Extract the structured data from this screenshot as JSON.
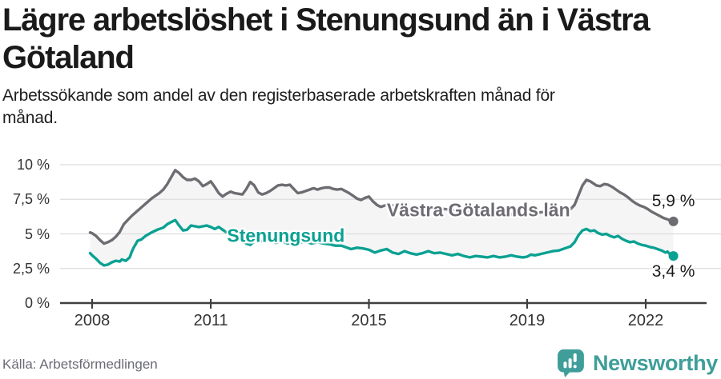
{
  "header": {
    "title": "Lägre arbetslöshet i Stenungsund än i Västra Götaland",
    "subtitle": "Arbetssökande som andel av den registerbaserade arbetskraften månad för månad."
  },
  "footer": {
    "source": "Källa: Arbetsförmedlingen",
    "brand": "Newsworthy"
  },
  "colors": {
    "grid": "#dcdcdc",
    "axis": "#3f3f3f",
    "fill_between": "#f5f5f5",
    "tick_text": "#333333",
    "brand_teal": "#3f9e99",
    "series_gray": "#6e6c72",
    "series_teal": "#0aa192"
  },
  "chart_data": {
    "type": "line",
    "title": "Lägre arbetslöshet i Stenungsund än i Västra Götaland",
    "xlabel": "",
    "ylabel": "",
    "ylim": [
      0,
      10
    ],
    "xlim": [
      2007.95,
      2022.7
    ],
    "grid": "horizontal",
    "legend_position": "inline-labels",
    "y_ticks": [
      {
        "v": 0,
        "label": "0 %"
      },
      {
        "v": 2.5,
        "label": "2,5 %"
      },
      {
        "v": 5,
        "label": "5 %"
      },
      {
        "v": 7.5,
        "label": "7,5 %"
      },
      {
        "v": 10,
        "label": "10 %"
      }
    ],
    "x_ticks": [
      {
        "v": 2008,
        "label": "2008"
      },
      {
        "v": 2011,
        "label": "2011"
      },
      {
        "v": 2015,
        "label": "2015"
      },
      {
        "v": 2019,
        "label": "2019"
      },
      {
        "v": 2022,
        "label": "2022"
      }
    ],
    "series": [
      {
        "name": "Västra Götalands län",
        "color": "#6e6c72",
        "end_label": "5,9 %",
        "end_value": 5.9,
        "value_label_side": "above",
        "label_anchor": {
          "x": 2017.77,
          "y": 6.72
        },
        "points": [
          [
            2007.95,
            5.1
          ],
          [
            2008.0,
            5.05
          ],
          [
            2008.1,
            4.85
          ],
          [
            2008.2,
            4.55
          ],
          [
            2008.3,
            4.3
          ],
          [
            2008.4,
            4.4
          ],
          [
            2008.5,
            4.55
          ],
          [
            2008.6,
            4.8
          ],
          [
            2008.7,
            5.15
          ],
          [
            2008.8,
            5.7
          ],
          [
            2008.9,
            6.0
          ],
          [
            2009.0,
            6.3
          ],
          [
            2009.1,
            6.55
          ],
          [
            2009.2,
            6.8
          ],
          [
            2009.3,
            7.05
          ],
          [
            2009.4,
            7.3
          ],
          [
            2009.5,
            7.55
          ],
          [
            2009.6,
            7.75
          ],
          [
            2009.7,
            7.95
          ],
          [
            2009.8,
            8.2
          ],
          [
            2009.9,
            8.6
          ],
          [
            2010.0,
            9.1
          ],
          [
            2010.1,
            9.6
          ],
          [
            2010.2,
            9.4
          ],
          [
            2010.3,
            9.1
          ],
          [
            2010.4,
            8.9
          ],
          [
            2010.5,
            8.9
          ],
          [
            2010.6,
            9.0
          ],
          [
            2010.7,
            8.8
          ],
          [
            2010.8,
            8.45
          ],
          [
            2010.9,
            8.6
          ],
          [
            2011.0,
            8.8
          ],
          [
            2011.1,
            8.4
          ],
          [
            2011.2,
            7.95
          ],
          [
            2011.3,
            7.7
          ],
          [
            2011.4,
            7.9
          ],
          [
            2011.5,
            8.05
          ],
          [
            2011.6,
            7.95
          ],
          [
            2011.7,
            7.9
          ],
          [
            2011.8,
            7.85
          ],
          [
            2011.9,
            8.25
          ],
          [
            2012.0,
            8.75
          ],
          [
            2012.1,
            8.5
          ],
          [
            2012.2,
            8.0
          ],
          [
            2012.3,
            7.85
          ],
          [
            2012.4,
            7.95
          ],
          [
            2012.5,
            8.1
          ],
          [
            2012.6,
            8.3
          ],
          [
            2012.7,
            8.5
          ],
          [
            2012.8,
            8.55
          ],
          [
            2012.9,
            8.5
          ],
          [
            2013.0,
            8.55
          ],
          [
            2013.1,
            8.25
          ],
          [
            2013.2,
            7.95
          ],
          [
            2013.3,
            8.0
          ],
          [
            2013.4,
            8.1
          ],
          [
            2013.5,
            8.2
          ],
          [
            2013.6,
            8.3
          ],
          [
            2013.7,
            8.2
          ],
          [
            2013.8,
            8.3
          ],
          [
            2013.9,
            8.35
          ],
          [
            2014.0,
            8.35
          ],
          [
            2014.1,
            8.25
          ],
          [
            2014.2,
            8.2
          ],
          [
            2014.3,
            8.25
          ],
          [
            2014.4,
            8.1
          ],
          [
            2014.5,
            7.95
          ],
          [
            2014.6,
            7.75
          ],
          [
            2014.7,
            7.55
          ],
          [
            2014.8,
            7.45
          ],
          [
            2014.9,
            7.6
          ],
          [
            2015.0,
            7.7
          ],
          [
            2015.1,
            7.35
          ],
          [
            2015.2,
            7.1
          ],
          [
            2015.3,
            6.95
          ],
          [
            2015.4,
            7.05
          ],
          [
            2015.5,
            7.1
          ],
          [
            2015.7,
            7.0
          ],
          [
            2015.9,
            6.95
          ],
          [
            2016.1,
            6.9
          ],
          [
            2016.3,
            6.85
          ],
          [
            2016.5,
            6.8
          ],
          [
            2016.7,
            6.85
          ],
          [
            2016.9,
            6.8
          ],
          [
            2017.1,
            6.75
          ],
          [
            2017.3,
            6.7
          ],
          [
            2017.5,
            6.65
          ],
          [
            2017.7,
            6.6
          ],
          [
            2017.9,
            6.55
          ],
          [
            2018.1,
            6.5
          ],
          [
            2018.3,
            6.45
          ],
          [
            2018.5,
            6.4
          ],
          [
            2018.7,
            6.45
          ],
          [
            2018.9,
            6.5
          ],
          [
            2019.1,
            6.5
          ],
          [
            2019.3,
            6.55
          ],
          [
            2019.5,
            6.6
          ],
          [
            2019.7,
            6.65
          ],
          [
            2019.9,
            6.7
          ],
          [
            2020.0,
            6.75
          ],
          [
            2020.1,
            6.8
          ],
          [
            2020.2,
            7.1
          ],
          [
            2020.3,
            7.8
          ],
          [
            2020.4,
            8.5
          ],
          [
            2020.5,
            8.9
          ],
          [
            2020.6,
            8.8
          ],
          [
            2020.7,
            8.6
          ],
          [
            2020.75,
            8.5
          ],
          [
            2020.85,
            8.45
          ],
          [
            2020.95,
            8.6
          ],
          [
            2021.05,
            8.55
          ],
          [
            2021.15,
            8.4
          ],
          [
            2021.25,
            8.2
          ],
          [
            2021.35,
            8.0
          ],
          [
            2021.45,
            7.85
          ],
          [
            2021.55,
            7.65
          ],
          [
            2021.65,
            7.4
          ],
          [
            2021.75,
            7.2
          ],
          [
            2021.85,
            7.05
          ],
          [
            2021.95,
            6.95
          ],
          [
            2022.05,
            6.8
          ],
          [
            2022.15,
            6.6
          ],
          [
            2022.25,
            6.45
          ],
          [
            2022.35,
            6.3
          ],
          [
            2022.45,
            6.15
          ],
          [
            2022.55,
            6.05
          ],
          [
            2022.62,
            5.95
          ],
          [
            2022.7,
            5.9
          ]
        ]
      },
      {
        "name": "Stenungsund",
        "color": "#0aa192",
        "end_label": "3,4 %",
        "end_value": 3.4,
        "value_label_side": "below",
        "label_anchor": {
          "x": 2012.9,
          "y": 4.83
        },
        "points": [
          [
            2007.95,
            3.6
          ],
          [
            2008.0,
            3.45
          ],
          [
            2008.1,
            3.2
          ],
          [
            2008.2,
            2.9
          ],
          [
            2008.3,
            2.72
          ],
          [
            2008.4,
            2.78
          ],
          [
            2008.5,
            2.95
          ],
          [
            2008.6,
            3.05
          ],
          [
            2008.7,
            3.0
          ],
          [
            2008.75,
            3.15
          ],
          [
            2008.85,
            3.05
          ],
          [
            2008.95,
            3.3
          ],
          [
            2009.0,
            3.7
          ],
          [
            2009.05,
            4.0
          ],
          [
            2009.15,
            4.5
          ],
          [
            2009.25,
            4.6
          ],
          [
            2009.35,
            4.85
          ],
          [
            2009.5,
            5.1
          ],
          [
            2009.65,
            5.3
          ],
          [
            2009.8,
            5.45
          ],
          [
            2009.9,
            5.7
          ],
          [
            2010.0,
            5.85
          ],
          [
            2010.1,
            6.0
          ],
          [
            2010.2,
            5.6
          ],
          [
            2010.3,
            5.25
          ],
          [
            2010.4,
            5.3
          ],
          [
            2010.5,
            5.6
          ],
          [
            2010.6,
            5.55
          ],
          [
            2010.7,
            5.5
          ],
          [
            2010.8,
            5.55
          ],
          [
            2010.9,
            5.6
          ],
          [
            2011.0,
            5.5
          ],
          [
            2011.1,
            5.35
          ],
          [
            2011.2,
            5.5
          ],
          [
            2011.3,
            5.3
          ],
          [
            2011.4,
            5.1
          ],
          [
            2011.5,
            4.95
          ],
          [
            2011.6,
            4.8
          ],
          [
            2011.7,
            4.55
          ],
          [
            2011.8,
            4.5
          ],
          [
            2011.9,
            4.3
          ],
          [
            2012.0,
            4.2
          ],
          [
            2012.1,
            4.45
          ],
          [
            2012.2,
            4.55
          ],
          [
            2012.35,
            4.4
          ],
          [
            2012.5,
            4.5
          ],
          [
            2012.65,
            4.35
          ],
          [
            2012.8,
            4.45
          ],
          [
            2012.95,
            4.3
          ],
          [
            2013.1,
            4.45
          ],
          [
            2013.25,
            4.35
          ],
          [
            2013.4,
            4.45
          ],
          [
            2013.55,
            4.3
          ],
          [
            2013.7,
            4.4
          ],
          [
            2013.85,
            4.3
          ],
          [
            2014.0,
            4.25
          ],
          [
            2014.15,
            4.15
          ],
          [
            2014.3,
            4.15
          ],
          [
            2014.45,
            4.0
          ],
          [
            2014.55,
            3.9
          ],
          [
            2014.7,
            4.0
          ],
          [
            2014.85,
            3.95
          ],
          [
            2015.0,
            3.85
          ],
          [
            2015.15,
            3.65
          ],
          [
            2015.3,
            3.8
          ],
          [
            2015.45,
            3.9
          ],
          [
            2015.6,
            3.65
          ],
          [
            2015.75,
            3.55
          ],
          [
            2015.9,
            3.75
          ],
          [
            2016.05,
            3.6
          ],
          [
            2016.2,
            3.5
          ],
          [
            2016.35,
            3.6
          ],
          [
            2016.5,
            3.75
          ],
          [
            2016.65,
            3.6
          ],
          [
            2016.8,
            3.65
          ],
          [
            2016.95,
            3.55
          ],
          [
            2017.1,
            3.45
          ],
          [
            2017.25,
            3.55
          ],
          [
            2017.4,
            3.4
          ],
          [
            2017.55,
            3.3
          ],
          [
            2017.7,
            3.4
          ],
          [
            2017.85,
            3.35
          ],
          [
            2018.0,
            3.3
          ],
          [
            2018.15,
            3.4
          ],
          [
            2018.3,
            3.3
          ],
          [
            2018.45,
            3.35
          ],
          [
            2018.6,
            3.45
          ],
          [
            2018.75,
            3.35
          ],
          [
            2018.9,
            3.3
          ],
          [
            2019.0,
            3.35
          ],
          [
            2019.1,
            3.5
          ],
          [
            2019.2,
            3.45
          ],
          [
            2019.35,
            3.55
          ],
          [
            2019.5,
            3.65
          ],
          [
            2019.65,
            3.75
          ],
          [
            2019.8,
            3.8
          ],
          [
            2019.95,
            3.95
          ],
          [
            2020.1,
            4.1
          ],
          [
            2020.2,
            4.4
          ],
          [
            2020.3,
            4.9
          ],
          [
            2020.4,
            5.25
          ],
          [
            2020.5,
            5.35
          ],
          [
            2020.6,
            5.2
          ],
          [
            2020.7,
            5.25
          ],
          [
            2020.8,
            5.05
          ],
          [
            2020.9,
            4.95
          ],
          [
            2021.0,
            5.0
          ],
          [
            2021.1,
            4.85
          ],
          [
            2021.2,
            4.75
          ],
          [
            2021.3,
            4.85
          ],
          [
            2021.4,
            4.65
          ],
          [
            2021.5,
            4.5
          ],
          [
            2021.6,
            4.4
          ],
          [
            2021.7,
            4.45
          ],
          [
            2021.8,
            4.3
          ],
          [
            2021.9,
            4.2
          ],
          [
            2022.0,
            4.15
          ],
          [
            2022.1,
            4.05
          ],
          [
            2022.2,
            4.0
          ],
          [
            2022.3,
            3.9
          ],
          [
            2022.4,
            3.8
          ],
          [
            2022.5,
            3.65
          ],
          [
            2022.55,
            3.72
          ],
          [
            2022.62,
            3.5
          ],
          [
            2022.7,
            3.4
          ]
        ]
      }
    ]
  }
}
